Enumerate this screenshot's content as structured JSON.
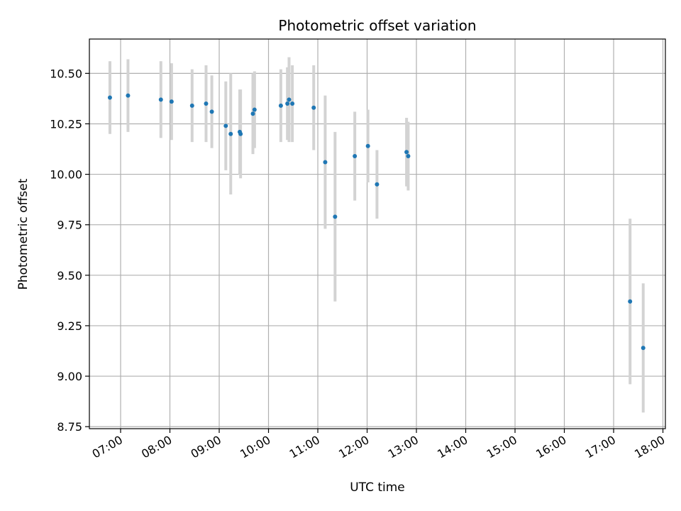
{
  "chart_data": {
    "type": "scatter",
    "title": "Photometric offset variation",
    "xlabel": "UTC time",
    "ylabel": "Photometric offset",
    "x_ticks": [
      "07:00",
      "08:00",
      "09:00",
      "10:00",
      "11:00",
      "12:00",
      "13:00",
      "14:00",
      "15:00",
      "16:00",
      "17:00",
      "18:00"
    ],
    "y_ticks": [
      "8.75",
      "9.00",
      "9.25",
      "9.50",
      "9.75",
      "10.00",
      "10.25",
      "10.50"
    ],
    "xlim": [
      "06:22",
      "18:03"
    ],
    "ylim": [
      8.74,
      10.67
    ],
    "grid": true,
    "colors": {
      "point": "#1f77b4",
      "errorbar": "#d3d3d3",
      "grid": "#b0b0b0"
    },
    "series": [
      {
        "points": [
          {
            "x": "06:47",
            "y": 10.38,
            "err": 0.18
          },
          {
            "x": "07:09",
            "y": 10.39,
            "err": 0.18
          },
          {
            "x": "07:49",
            "y": 10.37,
            "err": 0.19
          },
          {
            "x": "08:02",
            "y": 10.36,
            "err": 0.19
          },
          {
            "x": "08:27",
            "y": 10.34,
            "err": 0.18
          },
          {
            "x": "08:44",
            "y": 10.35,
            "err": 0.19
          },
          {
            "x": "08:51",
            "y": 10.31,
            "err": 0.18
          },
          {
            "x": "09:08",
            "y": 10.24,
            "err": 0.22
          },
          {
            "x": "09:14",
            "y": 10.2,
            "err": 0.3
          },
          {
            "x": "09:25",
            "y": 10.21,
            "err": 0.21
          },
          {
            "x": "09:26",
            "y": 10.2,
            "err": 0.22
          },
          {
            "x": "09:41",
            "y": 10.3,
            "err": 0.2
          },
          {
            "x": "09:43",
            "y": 10.32,
            "err": 0.19
          },
          {
            "x": "10:15",
            "y": 10.34,
            "err": 0.18
          },
          {
            "x": "10:23",
            "y": 10.35,
            "err": 0.18
          },
          {
            "x": "10:25",
            "y": 10.37,
            "err": 0.21
          },
          {
            "x": "10:29",
            "y": 10.35,
            "err": 0.19
          },
          {
            "x": "10:55",
            "y": 10.33,
            "err": 0.21
          },
          {
            "x": "11:09",
            "y": 10.06,
            "err": 0.33
          },
          {
            "x": "11:21",
            "y": 9.79,
            "err": 0.42
          },
          {
            "x": "11:45",
            "y": 10.09,
            "err": 0.22
          },
          {
            "x": "12:01",
            "y": 10.14,
            "err": 0.18
          },
          {
            "x": "12:12",
            "y": 9.95,
            "err": 0.17
          },
          {
            "x": "12:48",
            "y": 10.11,
            "err": 0.17
          },
          {
            "x": "12:50",
            "y": 10.09,
            "err": 0.17
          },
          {
            "x": "17:20",
            "y": 9.37,
            "err": 0.41
          },
          {
            "x": "17:36",
            "y": 9.14,
            "err": 0.32
          }
        ]
      }
    ]
  }
}
